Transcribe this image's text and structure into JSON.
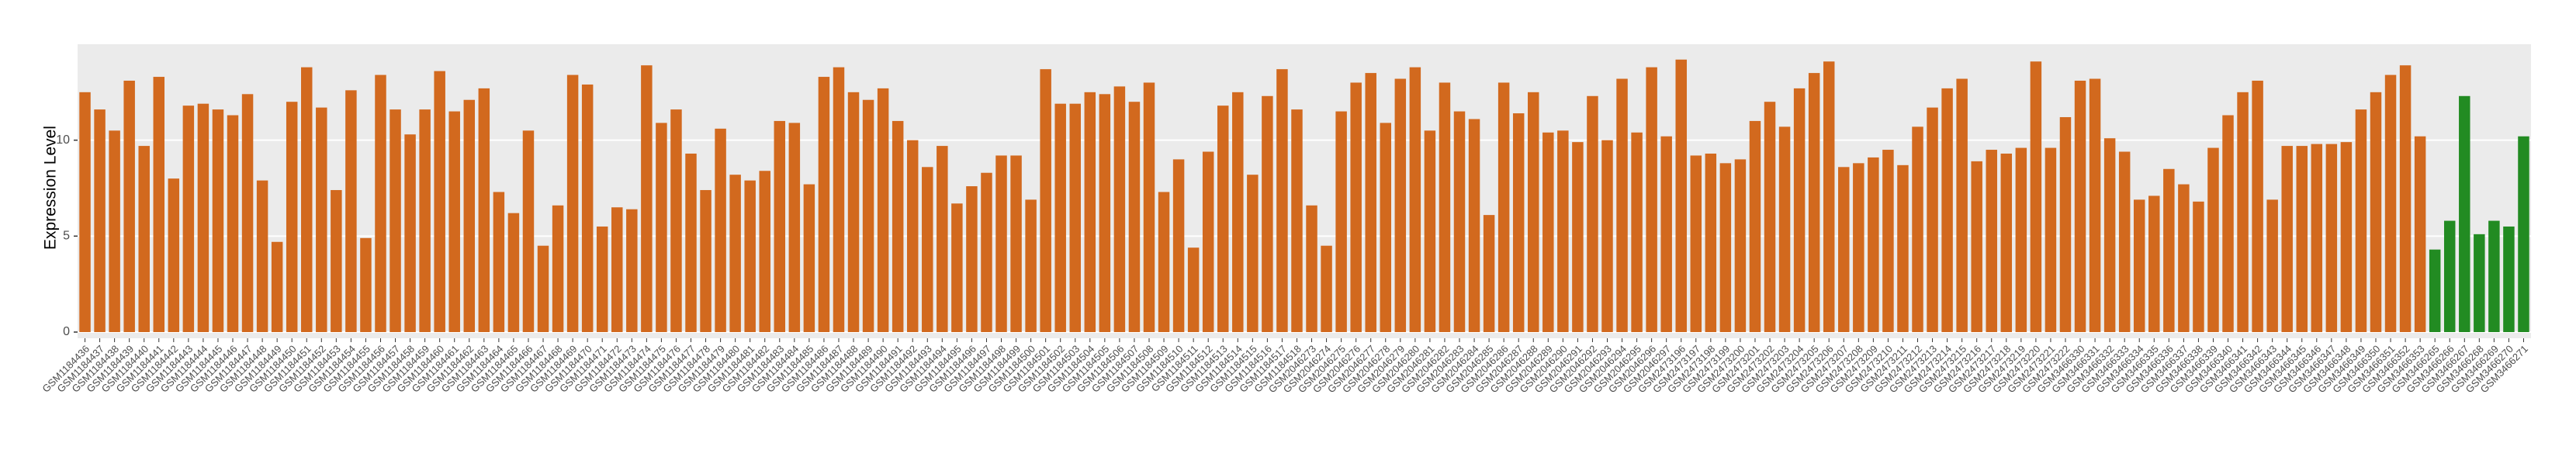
{
  "chart_data": {
    "type": "bar",
    "y_label": "Expression Level",
    "categories": [
      "GSM1184436",
      "GSM1184437",
      "GSM1184438",
      "GSM1184439",
      "GSM1184440",
      "GSM1184441",
      "GSM1184442",
      "GSM1184443",
      "GSM1184444",
      "GSM1184445",
      "GSM1184446",
      "GSM1184447",
      "GSM1184448",
      "GSM1184449",
      "GSM1184450",
      "GSM1184451",
      "GSM1184452",
      "GSM1184453",
      "GSM1184454",
      "GSM1184455",
      "GSM1184456",
      "GSM1184457",
      "GSM1184458",
      "GSM1184459",
      "GSM1184460",
      "GSM1184461",
      "GSM1184462",
      "GSM1184463",
      "GSM1184464",
      "GSM1184465",
      "GSM1184466",
      "GSM1184467",
      "GSM1184468",
      "GSM1184469",
      "GSM1184470",
      "GSM1184471",
      "GSM1184472",
      "GSM1184473",
      "GSM1184474",
      "GSM1184475",
      "GSM1184476",
      "GSM1184477",
      "GSM1184478",
      "GSM1184479",
      "GSM1184480",
      "GSM1184481",
      "GSM1184482",
      "GSM1184483",
      "GSM1184484",
      "GSM1184485",
      "GSM1184486",
      "GSM1184487",
      "GSM1184488",
      "GSM1184489",
      "GSM1184490",
      "GSM1184491",
      "GSM1184492",
      "GSM1184493",
      "GSM1184494",
      "GSM1184495",
      "GSM1184496",
      "GSM1184497",
      "GSM1184498",
      "GSM1184499",
      "GSM1184500",
      "GSM1184501",
      "GSM1184502",
      "GSM1184503",
      "GSM1184504",
      "GSM1184505",
      "GSM1184506",
      "GSM1184507",
      "GSM1184508",
      "GSM1184509",
      "GSM1184510",
      "GSM1184511",
      "GSM1184512",
      "GSM1184513",
      "GSM1184514",
      "GSM1184515",
      "GSM1184516",
      "GSM1184517",
      "GSM1184518",
      "GSM2046273",
      "GSM2046274",
      "GSM2046275",
      "GSM2046276",
      "GSM2046277",
      "GSM2046278",
      "GSM2046279",
      "GSM2046280",
      "GSM2046281",
      "GSM2046282",
      "GSM2046283",
      "GSM2046284",
      "GSM2046285",
      "GSM2046286",
      "GSM2046287",
      "GSM2046288",
      "GSM2046289",
      "GSM2046290",
      "GSM2046291",
      "GSM2046292",
      "GSM2046293",
      "GSM2046294",
      "GSM2046295",
      "GSM2046296",
      "GSM2046297",
      "GSM2473196",
      "GSM2473197",
      "GSM2473198",
      "GSM2473199",
      "GSM2473200",
      "GSM2473201",
      "GSM2473202",
      "GSM2473203",
      "GSM2473204",
      "GSM2473205",
      "GSM2473206",
      "GSM2473207",
      "GSM2473208",
      "GSM2473209",
      "GSM2473210",
      "GSM2473211",
      "GSM2473212",
      "GSM2473213",
      "GSM2473214",
      "GSM2473215",
      "GSM2473216",
      "GSM2473217",
      "GSM2473218",
      "GSM2473219",
      "GSM2473220",
      "GSM2473221",
      "GSM2473222",
      "GSM3466330",
      "GSM3466331",
      "GSM3466332",
      "GSM3466333",
      "GSM3466334",
      "GSM3466335",
      "GSM3466336",
      "GSM3466337",
      "GSM3466338",
      "GSM3466339",
      "GSM3466340",
      "GSM3466341",
      "GSM3466342",
      "GSM3466343",
      "GSM3466344",
      "GSM3466345",
      "GSM3466346",
      "GSM3466347",
      "GSM3466348",
      "GSM3466349",
      "GSM3466350",
      "GSM3466351",
      "GSM3466352",
      "GSM3466353",
      "GSM3466265",
      "GSM3466266",
      "GSM3466267",
      "GSM3466268",
      "GSM3466269",
      "GSM3466270",
      "GSM3466271"
    ],
    "values": [
      12.5,
      11.6,
      10.5,
      13.1,
      9.7,
      13.3,
      8.0,
      11.8,
      11.9,
      11.6,
      11.3,
      12.4,
      7.9,
      4.7,
      12.0,
      13.8,
      11.7,
      7.4,
      12.6,
      4.9,
      13.4,
      11.6,
      10.3,
      11.6,
      13.6,
      11.5,
      12.1,
      12.7,
      7.3,
      6.2,
      10.5,
      4.5,
      6.6,
      13.4,
      12.9,
      5.5,
      6.5,
      6.4,
      13.9,
      10.9,
      11.6,
      9.3,
      7.4,
      10.6,
      8.2,
      7.9,
      8.4,
      11.0,
      10.9,
      7.7,
      13.3,
      13.8,
      12.5,
      12.1,
      12.7,
      11.0,
      10.0,
      8.6,
      9.7,
      6.7,
      7.6,
      8.3,
      9.2,
      9.2,
      6.9,
      13.7,
      11.9,
      11.9,
      12.5,
      12.4,
      12.8,
      12.0,
      13.0,
      7.3,
      9.0,
      4.4,
      9.4,
      11.8,
      12.5,
      8.2,
      12.3,
      13.7,
      11.6,
      6.6,
      4.5,
      11.5,
      13.0,
      13.5,
      10.9,
      13.2,
      13.8,
      10.5,
      13.0,
      11.5,
      11.1,
      6.1,
      13.0,
      11.4,
      12.5,
      10.4,
      10.5,
      9.9,
      12.3,
      10.0,
      13.2,
      10.4,
      13.8,
      10.2,
      14.2,
      9.2,
      9.3,
      8.8,
      9.0,
      11.0,
      12.0,
      10.7,
      12.7,
      13.5,
      14.1,
      8.6,
      8.8,
      9.1,
      9.5,
      8.7,
      10.7,
      11.7,
      12.7,
      13.2,
      8.9,
      9.5,
      9.3,
      9.6,
      14.1,
      9.6,
      11.2,
      13.1,
      13.2,
      10.1,
      9.4,
      6.9,
      7.1,
      8.5,
      7.7,
      6.8,
      9.6,
      11.3,
      12.5,
      13.1,
      6.9,
      9.7,
      9.7,
      9.8,
      9.8,
      9.9,
      11.6,
      12.5,
      13.4,
      13.9,
      10.2,
      4.3,
      5.8,
      12.3,
      5.1,
      5.8,
      5.5,
      10.2
    ],
    "colors": [
      "#d2691e",
      "#d2691e",
      "#d2691e",
      "#d2691e",
      "#d2691e",
      "#d2691e",
      "#d2691e",
      "#d2691e",
      "#d2691e",
      "#d2691e",
      "#d2691e",
      "#d2691e",
      "#d2691e",
      "#d2691e",
      "#d2691e",
      "#d2691e",
      "#d2691e",
      "#d2691e",
      "#d2691e",
      "#d2691e",
      "#d2691e",
      "#d2691e",
      "#d2691e",
      "#d2691e",
      "#d2691e",
      "#d2691e",
      "#d2691e",
      "#d2691e",
      "#d2691e",
      "#d2691e",
      "#d2691e",
      "#d2691e",
      "#d2691e",
      "#d2691e",
      "#d2691e",
      "#d2691e",
      "#d2691e",
      "#d2691e",
      "#d2691e",
      "#d2691e",
      "#d2691e",
      "#d2691e",
      "#d2691e",
      "#d2691e",
      "#d2691e",
      "#d2691e",
      "#d2691e",
      "#d2691e",
      "#d2691e",
      "#d2691e",
      "#d2691e",
      "#d2691e",
      "#d2691e",
      "#d2691e",
      "#d2691e",
      "#d2691e",
      "#d2691e",
      "#d2691e",
      "#d2691e",
      "#d2691e",
      "#d2691e",
      "#d2691e",
      "#d2691e",
      "#d2691e",
      "#d2691e",
      "#d2691e",
      "#d2691e",
      "#d2691e",
      "#d2691e",
      "#d2691e",
      "#d2691e",
      "#d2691e",
      "#d2691e",
      "#d2691e",
      "#d2691e",
      "#d2691e",
      "#d2691e",
      "#d2691e",
      "#d2691e",
      "#d2691e",
      "#d2691e",
      "#d2691e",
      "#d2691e",
      "#d2691e",
      "#d2691e",
      "#d2691e",
      "#d2691e",
      "#d2691e",
      "#d2691e",
      "#d2691e",
      "#d2691e",
      "#d2691e",
      "#d2691e",
      "#d2691e",
      "#d2691e",
      "#d2691e",
      "#d2691e",
      "#d2691e",
      "#d2691e",
      "#d2691e",
      "#d2691e",
      "#d2691e",
      "#d2691e",
      "#d2691e",
      "#d2691e",
      "#d2691e",
      "#d2691e",
      "#d2691e",
      "#d2691e",
      "#d2691e",
      "#d2691e",
      "#d2691e",
      "#d2691e",
      "#d2691e",
      "#d2691e",
      "#d2691e",
      "#d2691e",
      "#d2691e",
      "#d2691e",
      "#d2691e",
      "#d2691e",
      "#d2691e",
      "#d2691e",
      "#d2691e",
      "#d2691e",
      "#d2691e",
      "#d2691e",
      "#d2691e",
      "#d2691e",
      "#d2691e",
      "#d2691e",
      "#d2691e",
      "#d2691e",
      "#d2691e",
      "#d2691e",
      "#d2691e",
      "#d2691e",
      "#d2691e",
      "#d2691e",
      "#d2691e",
      "#d2691e",
      "#d2691e",
      "#d2691e",
      "#d2691e",
      "#d2691e",
      "#d2691e",
      "#d2691e",
      "#d2691e",
      "#d2691e",
      "#d2691e",
      "#d2691e",
      "#d2691e",
      "#d2691e",
      "#d2691e",
      "#d2691e",
      "#d2691e",
      "#d2691e",
      "#d2691e",
      "#d2691e",
      "#228b22",
      "#228b22",
      "#228b22",
      "#228b22",
      "#228b22",
      "#228b22",
      "#228b22"
    ],
    "ylim": [
      0,
      15
    ],
    "yticks": [
      0,
      5,
      10
    ],
    "grid": true,
    "panel_color": "#ebebeb"
  }
}
